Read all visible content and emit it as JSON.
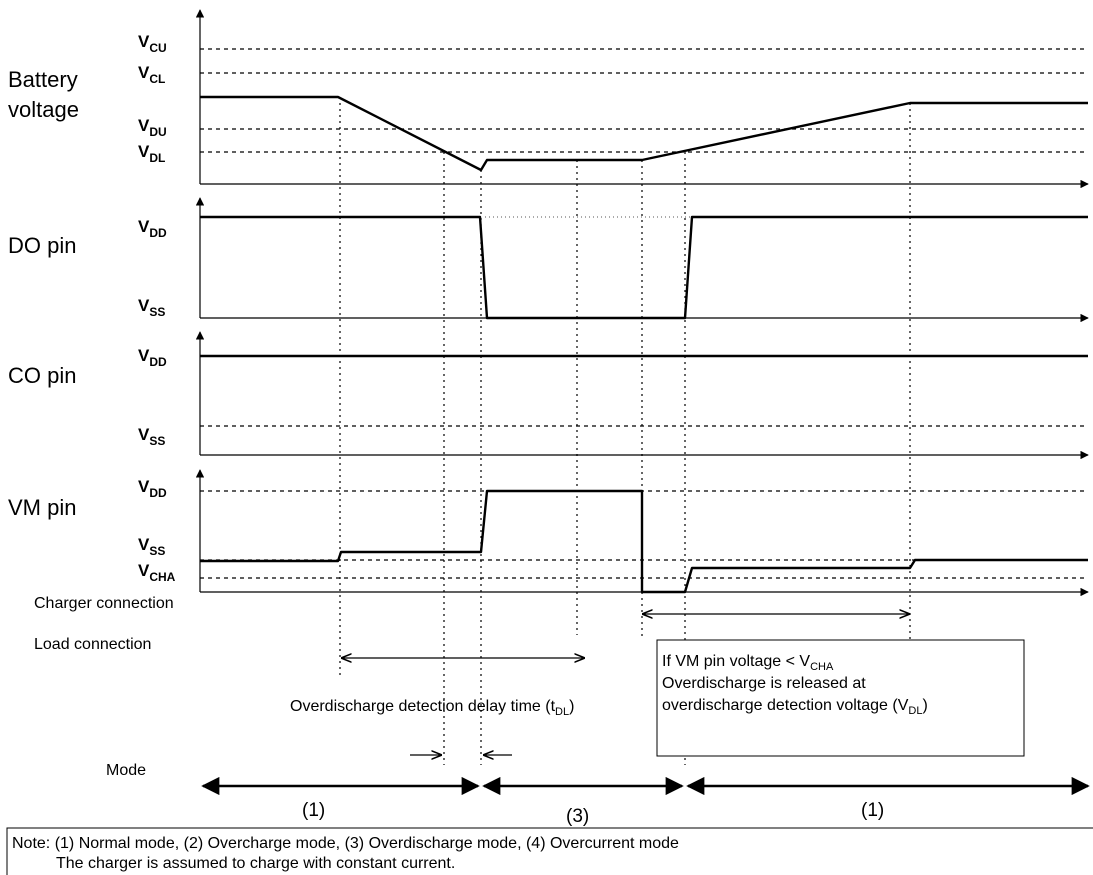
{
  "rows": {
    "battery": {
      "label_line1": "Battery",
      "label_line2": "voltage"
    },
    "do_pin": {
      "label": "DO pin"
    },
    "co_pin": {
      "label": "CO pin"
    },
    "vm_pin": {
      "label": "VM pin"
    }
  },
  "levels": {
    "vcu": {
      "main": "V",
      "sub": "CU"
    },
    "vcl": {
      "main": "V",
      "sub": "CL"
    },
    "vdu": {
      "main": "V",
      "sub": "DU"
    },
    "vdl": {
      "main": "V",
      "sub": "DL"
    },
    "do_vdd": {
      "main": "V",
      "sub": "DD"
    },
    "do_vss": {
      "main": "V",
      "sub": "SS"
    },
    "co_vdd": {
      "main": "V",
      "sub": "DD"
    },
    "co_vss": {
      "main": "V",
      "sub": "SS"
    },
    "vm_vdd": {
      "main": "V",
      "sub": "DD"
    },
    "vm_vss": {
      "main": "V",
      "sub": "SS"
    },
    "vm_vcha": {
      "main": "V",
      "sub": "CHA"
    }
  },
  "events": {
    "charger_connection": "Charger connection",
    "load_connection": "Load connection"
  },
  "delay": {
    "text_prefix": "Overdischarge detection delay time (t",
    "text_sub": "DL",
    "text_suffix": ")"
  },
  "release_box": {
    "line1_prefix": "If VM pin voltage < V",
    "line1_sub": "CHA",
    "line2": "Overdischarge is released at",
    "line3_prefix": "overdischarge detection voltage (V",
    "line3_sub": "DL",
    "line3_suffix": ")"
  },
  "mode": {
    "label": "Mode",
    "seg1": "(1)",
    "seg2": "(3)",
    "seg3": "(1)"
  },
  "note": {
    "line1": "Note: (1) Normal mode, (2) Overcharge mode, (3) Overdischarge mode, (4) Overcurrent mode",
    "line2": "The charger is assumed to charge with constant current."
  }
}
